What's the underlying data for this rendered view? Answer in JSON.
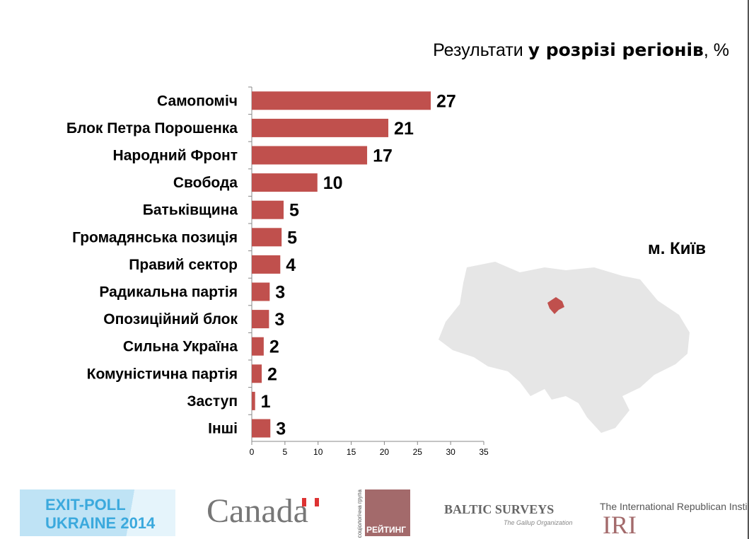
{
  "title": {
    "normal": "Результати ",
    "bold": "у розрізі регіонів",
    ", %": ", %"
  },
  "region": "м. Київ",
  "chart_data": {
    "type": "bar",
    "orientation": "horizontal",
    "categories": [
      "Самопоміч",
      "Блок Петра Порошенка",
      "Народний Фронт",
      "Свобода",
      "Батьківщина",
      "Громадянська позиція",
      "Правий сектор",
      "Радикальна партія",
      "Опозиційний блок",
      "Сильна Україна",
      "Комуністична партія",
      "Заступ",
      "Інші"
    ],
    "values": [
      27.0,
      20.6,
      17.4,
      9.9,
      4.8,
      4.5,
      4.3,
      2.7,
      2.6,
      1.8,
      1.5,
      0.5,
      2.8
    ],
    "labels": [
      "27",
      "21",
      "17",
      "10",
      "5",
      "5",
      "4",
      "3",
      "3",
      "2",
      "2",
      "1",
      "3"
    ],
    "xlim": [
      0,
      35
    ],
    "xticks": [
      "0",
      "5",
      "10",
      "15",
      "20",
      "25",
      "30",
      "35"
    ],
    "color": "#c0504d"
  },
  "footer": {
    "exit1": "EXIT-POLL",
    "exit2": "UKRAINE 2014",
    "canada": "Canada",
    "rating": "РЕЙТИНГ",
    "rating_side": "соціологічна група",
    "baltic": "BALTIC SURVEYS",
    "gallup": "The Gallup Organization",
    "iri_title": "The International Republican Institute",
    "iri": "IRI"
  }
}
